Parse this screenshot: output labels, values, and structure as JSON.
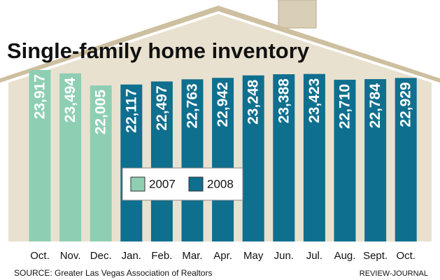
{
  "chart_data": {
    "type": "bar",
    "title": "Single-family home inventory",
    "categories": [
      "Oct.",
      "Nov.",
      "Dec.",
      "Jan.",
      "Feb.",
      "Mar.",
      "Apr.",
      "May",
      "Jun.",
      "Jul.",
      "Aug.",
      "Sept.",
      "Oct."
    ],
    "series": [
      {
        "name": "2007",
        "color": "#8ecfb4",
        "values": [
          23917,
          23494,
          22005,
          null,
          null,
          null,
          null,
          null,
          null,
          null,
          null,
          null,
          null
        ],
        "value_labels": [
          "23,917",
          "23,494",
          "22,005",
          null,
          null,
          null,
          null,
          null,
          null,
          null,
          null,
          null,
          null
        ]
      },
      {
        "name": "2008",
        "color": "#0f6f8f",
        "values": [
          null,
          null,
          null,
          22117,
          22497,
          22763,
          22942,
          23248,
          23388,
          23423,
          22710,
          22784,
          22929
        ],
        "value_labels": [
          null,
          null,
          null,
          "22,117",
          "22,497",
          "22,763",
          "22,942",
          "23,248",
          "23,388",
          "23,423",
          "22,710",
          "22,784",
          "22,929"
        ]
      }
    ],
    "ylim": [
      2700,
      24000
    ],
    "source": "SOURCE: Greater Las Vegas Association of Realtors",
    "credit": "REVIEW-JOURNAL"
  }
}
